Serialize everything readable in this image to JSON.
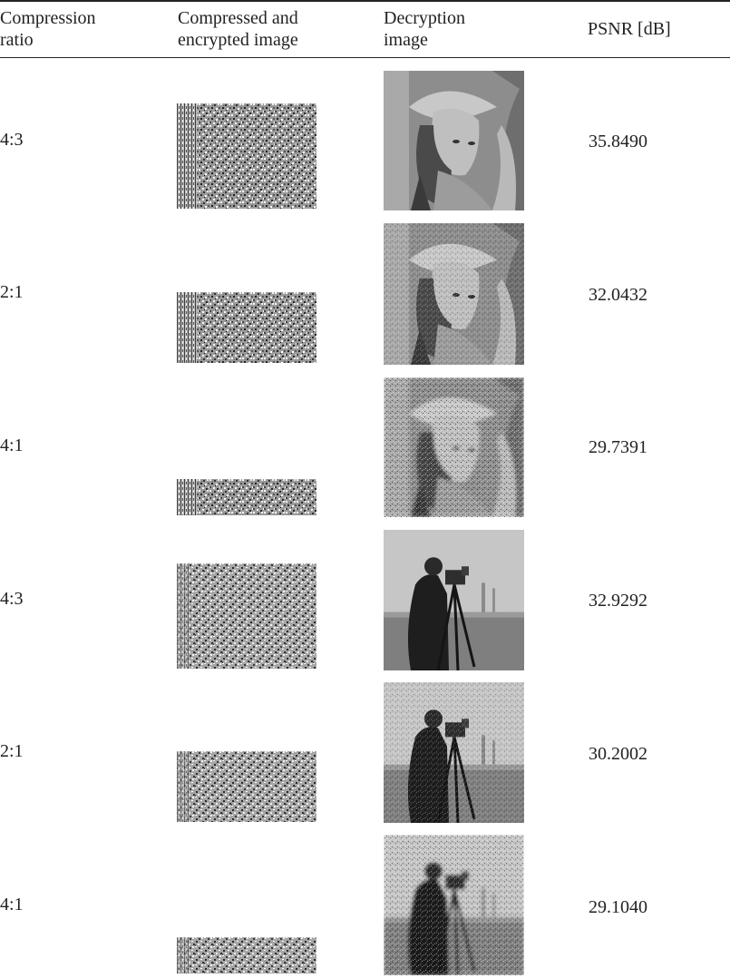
{
  "table": {
    "headers": [
      "Compression\nratio",
      "Compressed and\nencrypted image",
      "Decryption\nimage",
      "PSNR [dB]"
    ],
    "rows": [
      {
        "ratio": "4:3",
        "psnr": "35.8490",
        "subject": "lena-portrait",
        "noise_fraction": 1.0
      },
      {
        "ratio": "2:1",
        "psnr": "32.0432",
        "subject": "lena-portrait",
        "noise_fraction": 0.5
      },
      {
        "ratio": "4:1",
        "psnr": "29.7391",
        "subject": "lena-portrait",
        "noise_fraction": 0.25
      },
      {
        "ratio": "4:3",
        "psnr": "32.9292",
        "subject": "cameraman",
        "noise_fraction": 1.0
      },
      {
        "ratio": "2:1",
        "psnr": "30.2002",
        "subject": "cameraman",
        "noise_fraction": 0.5
      },
      {
        "ratio": "4:1",
        "psnr": "29.1040",
        "subject": "cameraman",
        "noise_fraction": 0.25
      }
    ]
  }
}
